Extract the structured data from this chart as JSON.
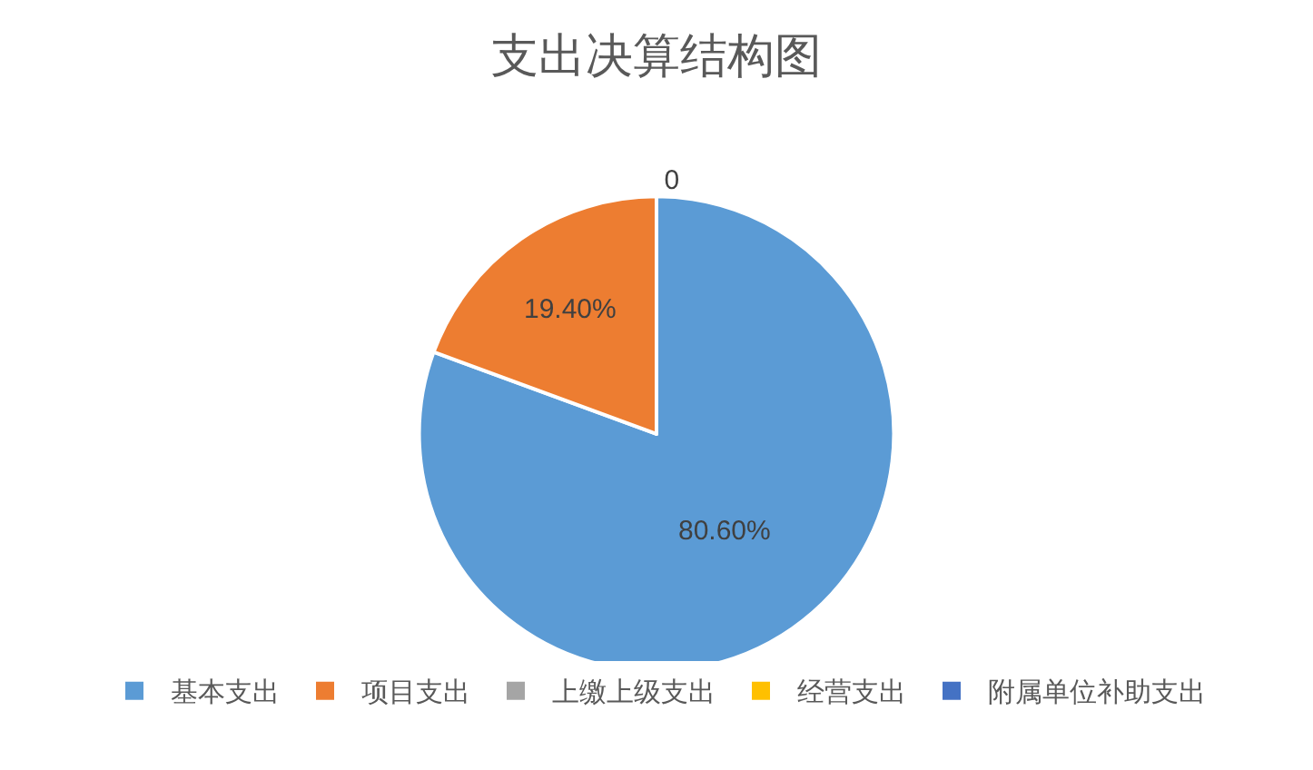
{
  "chart_data": {
    "type": "pie",
    "title": "支出决算结构图",
    "categories": [
      "基本支出",
      "项目支出",
      "上缴上级支出",
      "经营支出",
      "附属单位补助支出"
    ],
    "values": [
      80.6,
      19.4,
      0,
      0,
      0
    ],
    "value_labels": [
      "80.60%",
      "19.40%",
      "0",
      null,
      null
    ],
    "colors": [
      "#5b9bd5",
      "#ed7d31",
      "#a5a5a5",
      "#ffc000",
      "#4472c4"
    ],
    "legend": "bottom"
  }
}
